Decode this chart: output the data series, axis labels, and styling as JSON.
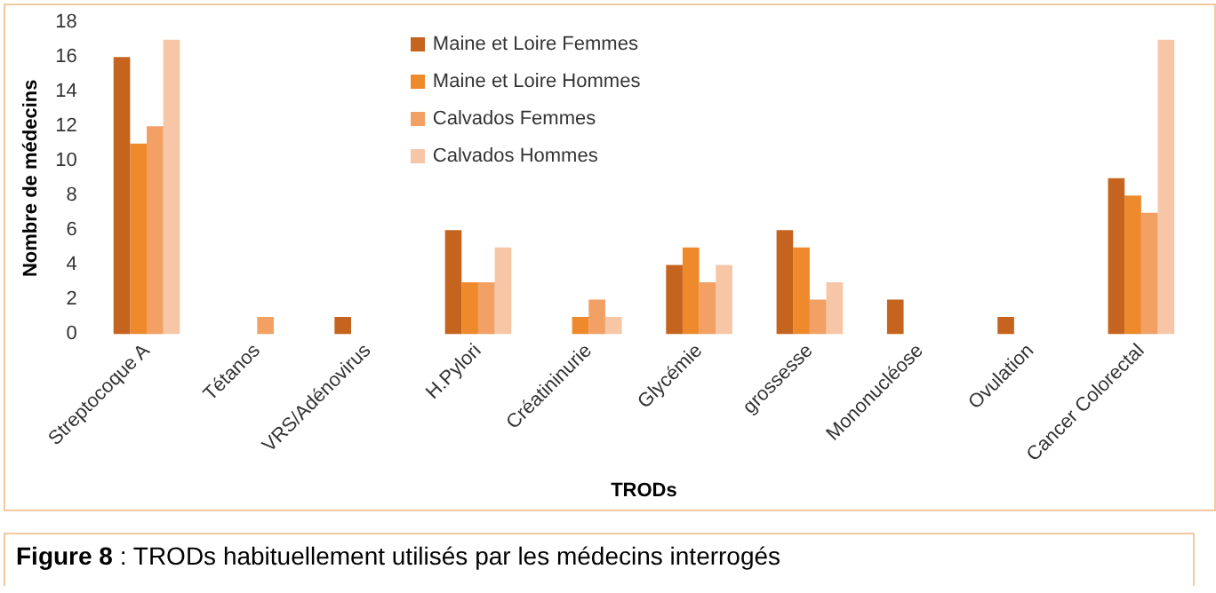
{
  "chart_data": {
    "type": "bar",
    "xlabel": "TRODs",
    "ylabel": "Nombre de médecins",
    "categories": [
      "Streptocoque A",
      "Tétanos",
      "VRS/Adénovirus",
      "H.Pylori",
      "Créatininurie",
      "Glycémie",
      "grossesse",
      "Mononucléose",
      "Ovulation",
      "Cancer Colorectal"
    ],
    "series": [
      {
        "name": "Maine et Loire Femmes",
        "color": "#c4641e",
        "values": [
          16,
          0,
          1,
          6,
          0,
          4,
          6,
          2,
          1,
          9
        ]
      },
      {
        "name": "Maine et Loire Hommes",
        "color": "#ee8a2c",
        "values": [
          11,
          0,
          0,
          3,
          1,
          5,
          5,
          0,
          0,
          8
        ]
      },
      {
        "name": "Calvados Femmes",
        "color": "#f2a064",
        "values": [
          12,
          1,
          0,
          3,
          2,
          3,
          2,
          0,
          0,
          7
        ]
      },
      {
        "name": "Calvados Hommes",
        "color": "#f6c6a6",
        "values": [
          17,
          0,
          0,
          5,
          1,
          4,
          3,
          0,
          0,
          17
        ]
      }
    ],
    "ylim": [
      0,
      18
    ],
    "yticks": [
      0,
      2,
      4,
      6,
      8,
      10,
      12,
      14,
      16,
      18
    ],
    "grid": false,
    "legend": "top",
    "annotations": [
      "Figure 8 : TRODs habituellement utilisés par les médecins interrogés"
    ]
  }
}
